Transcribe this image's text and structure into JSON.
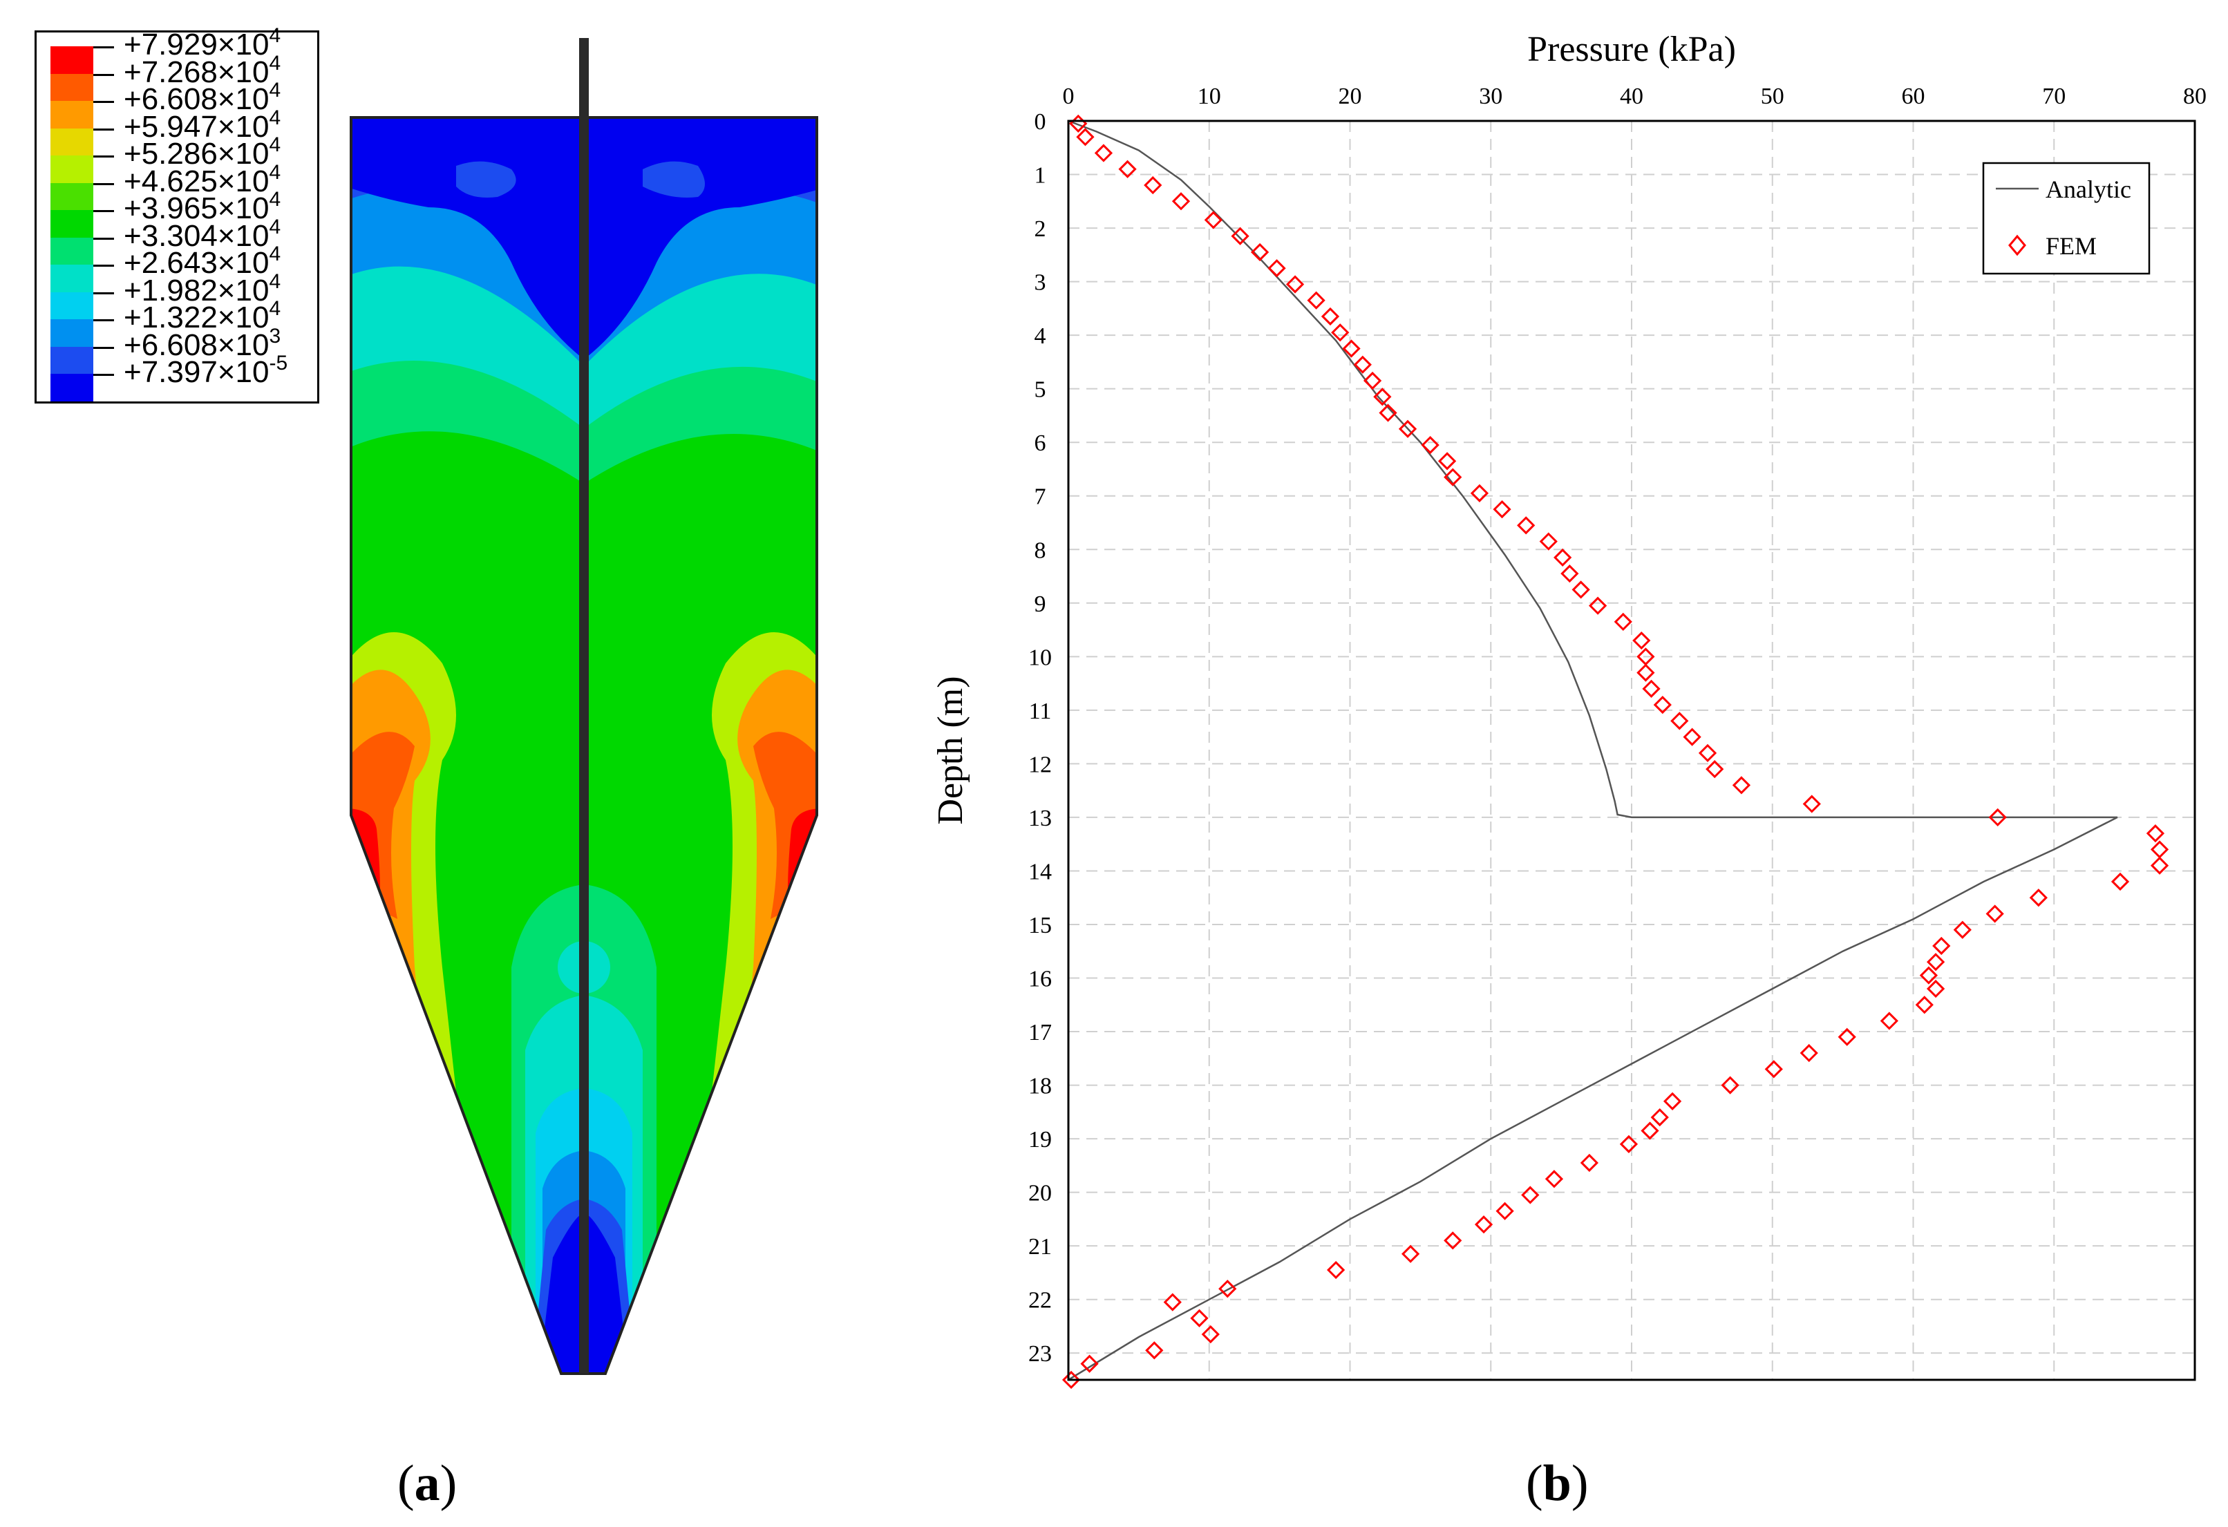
{
  "panel_a": {
    "label_open": "(",
    "label_letter": "a",
    "label_close": ")",
    "legend": [
      {
        "mantissa": "+7.929×10",
        "exp": "4",
        "color": "#ff0000"
      },
      {
        "mantissa": "+7.268×10",
        "exp": "4",
        "color": "#ff5a00"
      },
      {
        "mantissa": "+6.608×10",
        "exp": "4",
        "color": "#ff9a00"
      },
      {
        "mantissa": "+5.947×10",
        "exp": "4",
        "color": "#e6d800"
      },
      {
        "mantissa": "+5.286×10",
        "exp": "4",
        "color": "#b6f000"
      },
      {
        "mantissa": "+4.625×10",
        "exp": "4",
        "color": "#4ae000"
      },
      {
        "mantissa": "+3.965×10",
        "exp": "4",
        "color": "#00d800"
      },
      {
        "mantissa": "+3.304×10",
        "exp": "4",
        "color": "#00e070"
      },
      {
        "mantissa": "+2.643×10",
        "exp": "4",
        "color": "#00e0c8"
      },
      {
        "mantissa": "+1.982×10",
        "exp": "4",
        "color": "#00d0f0"
      },
      {
        "mantissa": "+1.322×10",
        "exp": "4",
        "color": "#0090f0"
      },
      {
        "mantissa": "+6.608×10",
        "exp": "3",
        "color": "#1c4cf0"
      },
      {
        "mantissa": "+7.397×10",
        "exp": "-5",
        "color": "#0000f0"
      }
    ]
  },
  "panel_b": {
    "label_open": "(",
    "label_letter": "b",
    "label_close": ")"
  },
  "chart_data": {
    "type": "line",
    "title": "",
    "xlabel": "Pressure (kPa)",
    "ylabel": "Depth (m)",
    "xlim": [
      0,
      80
    ],
    "ylim": [
      23.5,
      0
    ],
    "x_ticks": [
      "0",
      "10",
      "20",
      "30",
      "40",
      "50",
      "60",
      "70",
      "80"
    ],
    "y_ticks": [
      "0",
      "1",
      "2",
      "3",
      "4",
      "5",
      "6",
      "7",
      "8",
      "9",
      "10",
      "11",
      "12",
      "13",
      "14",
      "15",
      "16",
      "17",
      "18",
      "19",
      "20",
      "21",
      "22",
      "23"
    ],
    "grid": true,
    "legend_position": "top-right",
    "series": [
      {
        "name": "Analytic",
        "style": "line",
        "color": "#555555",
        "points": [
          [
            0,
            0
          ],
          [
            2,
            0.2
          ],
          [
            5,
            0.55
          ],
          [
            8,
            1.1
          ],
          [
            10,
            1.6
          ],
          [
            13,
            2.4
          ],
          [
            16,
            3.25
          ],
          [
            19,
            4.1
          ],
          [
            22,
            5.15
          ],
          [
            25,
            6.0
          ],
          [
            28,
            7.0
          ],
          [
            31,
            8.1
          ],
          [
            33.5,
            9.1
          ],
          [
            35.5,
            10.1
          ],
          [
            37,
            11.1
          ],
          [
            38.2,
            12.1
          ],
          [
            38.8,
            12.7
          ],
          [
            39,
            12.95
          ],
          [
            40,
            13.0
          ],
          [
            50,
            13.0
          ],
          [
            60,
            13.0
          ],
          [
            70,
            13.0
          ],
          [
            74.5,
            13.0
          ],
          [
            70,
            13.6
          ],
          [
            65,
            14.2
          ],
          [
            60,
            14.9
          ],
          [
            55,
            15.5
          ],
          [
            50,
            16.2
          ],
          [
            45,
            16.9
          ],
          [
            40,
            17.6
          ],
          [
            35,
            18.3
          ],
          [
            30,
            19.0
          ],
          [
            25,
            19.8
          ],
          [
            20,
            20.5
          ],
          [
            15,
            21.3
          ],
          [
            10,
            22.0
          ],
          [
            5,
            22.7
          ],
          [
            0,
            23.5
          ]
        ]
      },
      {
        "name": "FEM",
        "style": "marker",
        "marker": "diamond",
        "color": "#ff0000",
        "points": [
          [
            0.7,
            0.05
          ],
          [
            1.2,
            0.3
          ],
          [
            2.5,
            0.6
          ],
          [
            4.2,
            0.9
          ],
          [
            6,
            1.2
          ],
          [
            8,
            1.5
          ],
          [
            10.3,
            1.85
          ],
          [
            12.2,
            2.15
          ],
          [
            13.6,
            2.45
          ],
          [
            14.8,
            2.75
          ],
          [
            16.1,
            3.05
          ],
          [
            17.6,
            3.35
          ],
          [
            18.6,
            3.65
          ],
          [
            19.3,
            3.95
          ],
          [
            20.1,
            4.25
          ],
          [
            20.9,
            4.55
          ],
          [
            21.6,
            4.85
          ],
          [
            22.3,
            5.15
          ],
          [
            22.7,
            5.45
          ],
          [
            24.1,
            5.75
          ],
          [
            25.7,
            6.05
          ],
          [
            26.9,
            6.35
          ],
          [
            27.3,
            6.65
          ],
          [
            29.2,
            6.95
          ],
          [
            30.8,
            7.25
          ],
          [
            32.5,
            7.55
          ],
          [
            34.1,
            7.85
          ],
          [
            35.1,
            8.15
          ],
          [
            35.6,
            8.45
          ],
          [
            36.4,
            8.75
          ],
          [
            37.6,
            9.05
          ],
          [
            39.4,
            9.35
          ],
          [
            40.7,
            9.7
          ],
          [
            41.0,
            10.0
          ],
          [
            41.0,
            10.3
          ],
          [
            41.4,
            10.6
          ],
          [
            42.2,
            10.9
          ],
          [
            43.4,
            11.2
          ],
          [
            44.3,
            11.5
          ],
          [
            45.4,
            11.8
          ],
          [
            45.9,
            12.1
          ],
          [
            47.8,
            12.4
          ],
          [
            52.8,
            12.75
          ],
          [
            66,
            13.0
          ],
          [
            77.2,
            13.3
          ],
          [
            77.5,
            13.6
          ],
          [
            77.5,
            13.9
          ],
          [
            74.7,
            14.2
          ],
          [
            68.9,
            14.5
          ],
          [
            65.8,
            14.8
          ],
          [
            63.5,
            15.1
          ],
          [
            62.0,
            15.4
          ],
          [
            61.6,
            15.7
          ],
          [
            61.1,
            15.95
          ],
          [
            61.6,
            16.2
          ],
          [
            60.8,
            16.5
          ],
          [
            58.3,
            16.8
          ],
          [
            55.3,
            17.1
          ],
          [
            52.6,
            17.4
          ],
          [
            50.1,
            17.7
          ],
          [
            47.0,
            18.0
          ],
          [
            42.9,
            18.3
          ],
          [
            42.0,
            18.6
          ],
          [
            41.3,
            18.85
          ],
          [
            39.8,
            19.1
          ],
          [
            37.0,
            19.45
          ],
          [
            34.5,
            19.75
          ],
          [
            32.8,
            20.05
          ],
          [
            31.0,
            20.35
          ],
          [
            29.5,
            20.6
          ],
          [
            27.3,
            20.9
          ],
          [
            24.3,
            21.15
          ],
          [
            19.0,
            21.45
          ],
          [
            11.3,
            21.8
          ],
          [
            7.4,
            22.05
          ],
          [
            9.3,
            22.35
          ],
          [
            10.1,
            22.65
          ],
          [
            6.1,
            22.95
          ],
          [
            1.5,
            23.2
          ],
          [
            0.2,
            23.5
          ]
        ]
      }
    ]
  }
}
